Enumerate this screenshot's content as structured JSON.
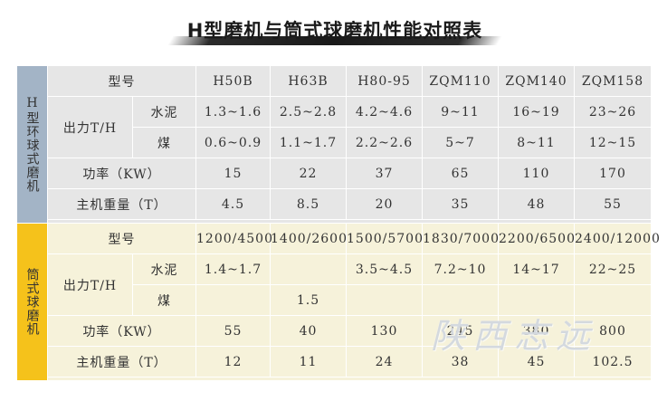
{
  "title": "H型磨机与筒式球磨机性能对照表",
  "labels": {
    "model": "型号",
    "output": "出力T/H",
    "cement": "水泥",
    "coal": "煤",
    "power_h": "功率（KW）",
    "power_q": "功率（KW）",
    "weight": "主机重量（T）"
  },
  "h_section": {
    "side_label": "H型环球式磨机",
    "models": [
      "H50B",
      "H63B",
      "H80-95",
      "ZQM110",
      "ZQM140",
      "ZQM158"
    ],
    "cement": [
      "1.3~1.6",
      "2.5~2.8",
      "4.2~4.6",
      "9~11",
      "16~19",
      "23~26"
    ],
    "coal": [
      "0.6~0.9",
      "1.1~1.7",
      "2.2~2.6",
      "5~7",
      "8~11",
      "12~15"
    ],
    "power": [
      "15",
      "22",
      "37",
      "65",
      "110",
      "170"
    ],
    "weight": [
      "4.5",
      "8.5",
      "20",
      "35",
      "48",
      "55"
    ]
  },
  "q_section": {
    "side_label": "筒式球磨机",
    "models": [
      "1200/4500",
      "1400/2600",
      "1500/5700",
      "1830/7000",
      "2200/6500",
      "2400/12000"
    ],
    "cement": [
      "1.4~1.7",
      "",
      "3.5~4.5",
      "7.2~10",
      "14~17",
      "22~25"
    ],
    "coal": [
      "",
      "1.5",
      "",
      "",
      "",
      ""
    ],
    "power": [
      "55",
      "40",
      "130",
      "245",
      "380",
      "800"
    ],
    "weight": [
      "12",
      "11",
      "24",
      "38",
      "45",
      "102.5"
    ]
  },
  "watermark": "陕西志远",
  "colors": {
    "h_side": "#a3b4c6",
    "h_cell": "#e6e6e6",
    "q_side": "#f5c21b",
    "q_cell": "#f6f2da"
  }
}
